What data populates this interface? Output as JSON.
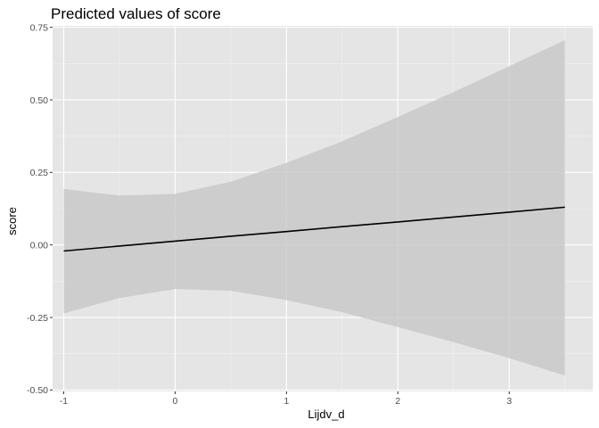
{
  "chart_data": {
    "type": "line",
    "title": "Predicted values of score",
    "xlabel": "Lijdv_d",
    "ylabel": "score",
    "xlim": [
      -1.1,
      3.75
    ],
    "ylim": [
      -0.505,
      0.755
    ],
    "x_ticks": [
      -1,
      0,
      1,
      2,
      3
    ],
    "x_tick_labels": [
      "-1",
      "0",
      "1",
      "2",
      "3"
    ],
    "y_ticks": [
      -0.5,
      -0.25,
      0,
      0.25,
      0.5,
      0.75
    ],
    "y_tick_labels": [
      "-0.50",
      "-0.25",
      "0.00",
      "0.25",
      "0.50",
      "0.75"
    ],
    "grid": true,
    "series": [
      {
        "x": [
          -1,
          -0.5,
          0,
          0.5,
          1,
          1.5,
          2,
          2.5,
          3,
          3.5
        ],
        "predicted": [
          -0.021,
          -0.004,
          0.013,
          0.03,
          0.046,
          0.063,
          0.079,
          0.096,
          0.113,
          0.13
        ],
        "conf_low": [
          -0.236,
          -0.183,
          -0.152,
          -0.158,
          -0.19,
          -0.232,
          -0.283,
          -0.335,
          -0.39,
          -0.45
        ],
        "conf_high": [
          0.193,
          0.17,
          0.176,
          0.218,
          0.283,
          0.357,
          0.441,
          0.527,
          0.616,
          0.706
        ]
      }
    ],
    "colors": {
      "panel_background": "#e5e5e5",
      "grid_major": "#ffffff",
      "grid_minor": "#f2f2f2",
      "ribbon": "#c4c4c4",
      "line": "#000000"
    }
  }
}
